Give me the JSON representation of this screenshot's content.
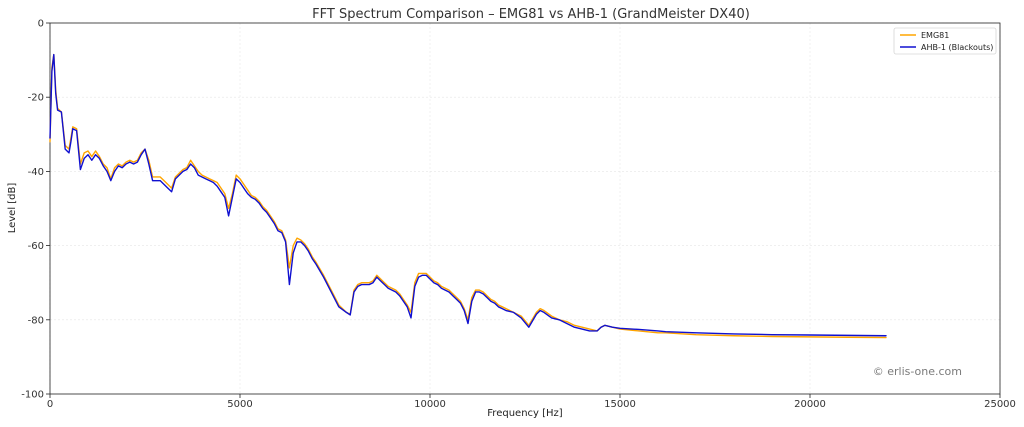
{
  "chart_data": {
    "type": "line",
    "title": "FFT Spectrum Comparison – EMG81 vs AHB-1 (GrandMeister DX40)",
    "xlabel": "Frequency [Hz]",
    "ylabel": "Level [dB]",
    "xlim": [
      0,
      25000
    ],
    "ylim": [
      -100,
      0
    ],
    "xticks": [
      0,
      5000,
      10000,
      15000,
      20000,
      25000
    ],
    "yticks": [
      0,
      -20,
      -40,
      -60,
      -80,
      -100
    ],
    "grid": true,
    "legend_position": "top-right",
    "watermark": "© erlis-one.com",
    "series": [
      {
        "name": "EMG81",
        "color": "#FFA500",
        "x": [
          0,
          50,
          100,
          150,
          200,
          300,
          400,
          500,
          550,
          600,
          700,
          800,
          900,
          1000,
          1100,
          1200,
          1300,
          1400,
          1500,
          1600,
          1700,
          1800,
          1900,
          2000,
          2100,
          2200,
          2300,
          2400,
          2500,
          2600,
          2700,
          2800,
          2900,
          3000,
          3100,
          3200,
          3300,
          3400,
          3500,
          3600,
          3700,
          3800,
          3900,
          4000,
          4100,
          4200,
          4300,
          4400,
          4500,
          4600,
          4700,
          4800,
          4900,
          5000,
          5100,
          5200,
          5300,
          5400,
          5500,
          5600,
          5700,
          5800,
          5900,
          6000,
          6100,
          6200,
          6300,
          6400,
          6500,
          6600,
          6700,
          6800,
          6900,
          7000,
          7200,
          7400,
          7600,
          7800,
          7900,
          8000,
          8100,
          8200,
          8300,
          8400,
          8500,
          8600,
          8700,
          8800,
          8900,
          9000,
          9100,
          9200,
          9300,
          9400,
          9500,
          9600,
          9700,
          9800,
          9900,
          10000,
          10100,
          10200,
          10300,
          10400,
          10500,
          10600,
          10700,
          10800,
          10900,
          11000,
          11100,
          11200,
          11300,
          11400,
          11500,
          11600,
          11700,
          11800,
          11900,
          12000,
          12200,
          12400,
          12600,
          12800,
          12900,
          13000,
          13200,
          13400,
          13600,
          13800,
          14000,
          14200,
          14400,
          14500,
          14600,
          14800,
          15000,
          15500,
          16000,
          16200,
          17000,
          18000,
          19000,
          20000,
          21000,
          22000
        ],
        "values": [
          -32,
          -12,
          -8.5,
          -18,
          -23,
          -24,
          -33,
          -34,
          -31,
          -28,
          -28.5,
          -38,
          -35,
          -34.5,
          -36,
          -34.5,
          -36,
          -38,
          -39,
          -42,
          -39,
          -38,
          -38.5,
          -37.5,
          -37,
          -37.5,
          -37,
          -35,
          -34,
          -37,
          -41.5,
          -41.5,
          -41.5,
          -42.5,
          -43.5,
          -44.5,
          -41.5,
          -40.5,
          -39.5,
          -39,
          -37,
          -38.5,
          -40,
          -41,
          -41.5,
          -42,
          -42.5,
          -43,
          -44.5,
          -46,
          -50,
          -46,
          -41,
          -42,
          -43.5,
          -45,
          -46.5,
          -47,
          -48,
          -49.5,
          -50.5,
          -52,
          -53.5,
          -55.5,
          -56,
          -58.5,
          -66,
          -60,
          -58,
          -58.5,
          -59.5,
          -61,
          -63,
          -64.5,
          -68,
          -72,
          -76,
          -78,
          -78.5,
          -72,
          -70.5,
          -70,
          -70,
          -70,
          -69.5,
          -68,
          -69,
          -70,
          -71,
          -71.5,
          -72,
          -73,
          -74.5,
          -76,
          -78,
          -70,
          -67.5,
          -67.5,
          -67.5,
          -68.5,
          -69.5,
          -70,
          -71,
          -71.5,
          -72,
          -73,
          -74,
          -75,
          -77,
          -80,
          -74,
          -72,
          -72,
          -72.5,
          -73.5,
          -74.5,
          -75,
          -76,
          -76.5,
          -77,
          -78,
          -79,
          -81.5,
          -78,
          -77,
          -77.5,
          -79,
          -80,
          -80.5,
          -81.5,
          -82,
          -82.5,
          -83,
          -82,
          -81.5,
          -82,
          -82.5,
          -83,
          -83.5,
          -83.5,
          -84,
          -84.3,
          -84.5,
          -84.6,
          -84.7,
          -84.8
        ]
      },
      {
        "name": "AHB-1 (Blackouts)",
        "color": "#1010D0",
        "x": [
          0,
          50,
          100,
          150,
          200,
          300,
          400,
          500,
          550,
          600,
          700,
          800,
          900,
          1000,
          1100,
          1200,
          1300,
          1400,
          1500,
          1600,
          1700,
          1800,
          1900,
          2000,
          2100,
          2200,
          2300,
          2400,
          2500,
          2600,
          2700,
          2800,
          2900,
          3000,
          3100,
          3200,
          3300,
          3400,
          3500,
          3600,
          3700,
          3800,
          3900,
          4000,
          4100,
          4200,
          4300,
          4400,
          4500,
          4600,
          4700,
          4800,
          4900,
          5000,
          5100,
          5200,
          5300,
          5400,
          5500,
          5600,
          5700,
          5800,
          5900,
          6000,
          6100,
          6200,
          6300,
          6400,
          6500,
          6600,
          6700,
          6800,
          6900,
          7000,
          7200,
          7400,
          7600,
          7800,
          7900,
          8000,
          8100,
          8200,
          8300,
          8400,
          8500,
          8600,
          8700,
          8800,
          8900,
          9000,
          9100,
          9200,
          9300,
          9400,
          9500,
          9600,
          9700,
          9800,
          9900,
          10000,
          10100,
          10200,
          10300,
          10400,
          10500,
          10600,
          10700,
          10800,
          10900,
          11000,
          11100,
          11200,
          11300,
          11400,
          11500,
          11600,
          11700,
          11800,
          11900,
          12000,
          12200,
          12400,
          12600,
          12800,
          12900,
          13000,
          13200,
          13400,
          13600,
          13800,
          14000,
          14200,
          14400,
          14500,
          14600,
          14800,
          15000,
          15500,
          16000,
          16200,
          17000,
          18000,
          19000,
          20000,
          21000,
          22000
        ],
        "values": [
          -31,
          -13,
          -8.5,
          -19,
          -23.5,
          -24,
          -34,
          -35,
          -32,
          -28.5,
          -29,
          -39.5,
          -36.5,
          -35.5,
          -37,
          -35.5,
          -36.5,
          -38.5,
          -40,
          -42.5,
          -40,
          -38.5,
          -39,
          -38,
          -37.5,
          -38,
          -37.5,
          -35.5,
          -34,
          -38,
          -42.5,
          -42.5,
          -42.5,
          -43.5,
          -44.5,
          -45.5,
          -42,
          -41,
          -40,
          -39.5,
          -38,
          -39,
          -41,
          -41.5,
          -42,
          -42.5,
          -43,
          -44,
          -45.5,
          -47,
          -52,
          -47,
          -42,
          -43,
          -44.5,
          -46,
          -47,
          -47.5,
          -48.5,
          -50,
          -51,
          -52.5,
          -54,
          -56,
          -56.5,
          -59,
          -70.5,
          -62,
          -59,
          -59,
          -60,
          -61.5,
          -63.5,
          -65,
          -68.5,
          -72.5,
          -76.5,
          -78,
          -78.7,
          -72.5,
          -71,
          -70.5,
          -70.5,
          -70.5,
          -70,
          -68.5,
          -69.5,
          -70.5,
          -71.5,
          -72,
          -72.5,
          -73.5,
          -75,
          -76.5,
          -79.5,
          -71,
          -68.5,
          -68,
          -68,
          -69,
          -70,
          -70.5,
          -71.5,
          -72,
          -72.5,
          -73.5,
          -74.5,
          -75.5,
          -77.5,
          -81,
          -75,
          -72.5,
          -72.5,
          -73,
          -74,
          -75,
          -75.5,
          -76.5,
          -77,
          -77.5,
          -78,
          -79.5,
          -82,
          -78.5,
          -77.5,
          -78,
          -79.5,
          -80,
          -81,
          -82,
          -82.5,
          -83,
          -83,
          -82,
          -81.5,
          -82,
          -82.3,
          -82.6,
          -83,
          -83.2,
          -83.5,
          -83.8,
          -84,
          -84.1,
          -84.2,
          -84.3
        ]
      }
    ]
  }
}
